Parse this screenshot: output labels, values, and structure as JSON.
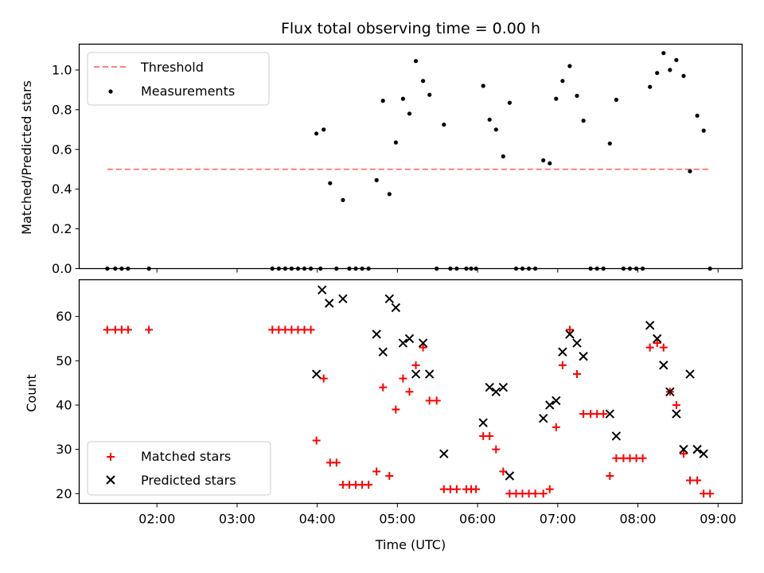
{
  "figure": {
    "title": "Flux total observing time = 0.00 h"
  },
  "colors": {
    "threshold": "#ff7f7f",
    "measurement": "#000000",
    "matched": "#ff0000",
    "predicted": "#000000"
  },
  "chart_data": [
    {
      "type": "scatter",
      "title": "Flux total observing time = 0.00 h",
      "xlabel": "",
      "ylabel": "Matched/Predicted stars",
      "xlim": [
        1.03,
        9.3
      ],
      "ylim": [
        0.0,
        1.13
      ],
      "grid": false,
      "legend_position": "top-left",
      "yticks": [
        "0.0",
        "0.2",
        "0.4",
        "0.6",
        "0.8",
        "1.0"
      ],
      "series": [
        {
          "name": "Threshold",
          "kind": "dashed-line",
          "points": [
            [
              1.38,
              0.5
            ],
            [
              8.9,
              0.5
            ]
          ]
        },
        {
          "name": "Measurements",
          "kind": "dots",
          "points": [
            [
              1.38,
              0
            ],
            [
              1.48,
              0
            ],
            [
              1.56,
              0
            ],
            [
              1.64,
              0
            ],
            [
              1.9,
              0
            ],
            [
              3.44,
              0
            ],
            [
              3.52,
              0
            ],
            [
              3.6,
              0
            ],
            [
              3.68,
              0
            ],
            [
              3.76,
              0
            ],
            [
              3.84,
              0
            ],
            [
              3.92,
              0
            ],
            [
              4.04,
              0
            ],
            [
              3.99,
              0.68
            ],
            [
              4.08,
              0.7
            ],
            [
              4.16,
              0.43
            ],
            [
              4.24,
              0
            ],
            [
              4.32,
              0.345
            ],
            [
              4.4,
              0
            ],
            [
              4.48,
              0
            ],
            [
              4.56,
              0
            ],
            [
              4.64,
              0
            ],
            [
              4.74,
              0.445
            ],
            [
              4.82,
              0.845
            ],
            [
              4.9,
              0.375
            ],
            [
              4.98,
              0.635
            ],
            [
              5.07,
              0.855
            ],
            [
              5.15,
              0.78
            ],
            [
              5.23,
              1.045
            ],
            [
              5.32,
              0.945
            ],
            [
              5.4,
              0.875
            ],
            [
              5.49,
              0
            ],
            [
              5.58,
              0.725
            ],
            [
              5.66,
              0
            ],
            [
              5.74,
              0
            ],
            [
              5.86,
              0
            ],
            [
              5.92,
              0
            ],
            [
              5.98,
              0
            ],
            [
              6.07,
              0.92
            ],
            [
              6.15,
              0.75
            ],
            [
              6.23,
              0.7
            ],
            [
              6.32,
              0.565
            ],
            [
              6.4,
              0.835
            ],
            [
              6.48,
              0
            ],
            [
              6.56,
              0
            ],
            [
              6.64,
              0
            ],
            [
              6.72,
              0
            ],
            [
              6.82,
              0.545
            ],
            [
              6.9,
              0.53
            ],
            [
              6.98,
              0.855
            ],
            [
              7.06,
              0.945
            ],
            [
              7.15,
              1.02
            ],
            [
              7.24,
              0.87
            ],
            [
              7.32,
              0.745
            ],
            [
              7.41,
              0
            ],
            [
              7.49,
              0
            ],
            [
              7.57,
              0
            ],
            [
              7.65,
              0.63
            ],
            [
              7.73,
              0.85
            ],
            [
              7.82,
              0
            ],
            [
              7.9,
              0
            ],
            [
              7.98,
              0
            ],
            [
              8.06,
              0
            ],
            [
              8.15,
              0.915
            ],
            [
              8.24,
              0.985
            ],
            [
              8.32,
              1.085
            ],
            [
              8.4,
              1.0
            ],
            [
              8.48,
              1.05
            ],
            [
              8.57,
              0.97
            ],
            [
              8.65,
              0.49
            ],
            [
              8.74,
              0.77
            ],
            [
              8.82,
              0.695
            ],
            [
              8.9,
              0
            ]
          ]
        }
      ]
    },
    {
      "type": "scatter",
      "title": "",
      "xlabel": "Time (UTC)",
      "ylabel": "Count",
      "xlim": [
        1.03,
        9.3
      ],
      "ylim": [
        17.8,
        68.3
      ],
      "grid": false,
      "legend_position": "bottom-left",
      "xticks": [
        {
          "value": 2,
          "label": "02:00"
        },
        {
          "value": 3,
          "label": "03:00"
        },
        {
          "value": 4,
          "label": "04:00"
        },
        {
          "value": 5,
          "label": "05:00"
        },
        {
          "value": 6,
          "label": "06:00"
        },
        {
          "value": 7,
          "label": "07:00"
        },
        {
          "value": 8,
          "label": "08:00"
        },
        {
          "value": 9,
          "label": "09:00"
        }
      ],
      "yticks": [
        "20",
        "30",
        "40",
        "50",
        "60"
      ],
      "series": [
        {
          "name": "Matched stars",
          "marker": "plus",
          "points": [
            [
              1.38,
              57
            ],
            [
              1.48,
              57
            ],
            [
              1.56,
              57
            ],
            [
              1.64,
              57
            ],
            [
              1.9,
              57
            ],
            [
              3.44,
              57
            ],
            [
              3.52,
              57
            ],
            [
              3.6,
              57
            ],
            [
              3.68,
              57
            ],
            [
              3.76,
              57
            ],
            [
              3.84,
              57
            ],
            [
              3.92,
              57
            ],
            [
              3.99,
              32
            ],
            [
              4.08,
              46
            ],
            [
              4.16,
              27
            ],
            [
              4.24,
              27
            ],
            [
              4.32,
              22
            ],
            [
              4.4,
              22
            ],
            [
              4.48,
              22
            ],
            [
              4.56,
              22
            ],
            [
              4.64,
              22
            ],
            [
              4.74,
              25
            ],
            [
              4.82,
              44
            ],
            [
              4.9,
              24
            ],
            [
              4.98,
              39
            ],
            [
              5.07,
              46
            ],
            [
              5.15,
              43
            ],
            [
              5.23,
              49
            ],
            [
              5.32,
              53
            ],
            [
              5.4,
              41
            ],
            [
              5.49,
              41
            ],
            [
              5.58,
              21
            ],
            [
              5.66,
              21
            ],
            [
              5.74,
              21
            ],
            [
              5.86,
              21
            ],
            [
              5.92,
              21
            ],
            [
              5.98,
              21
            ],
            [
              6.07,
              33
            ],
            [
              6.15,
              33
            ],
            [
              6.23,
              30
            ],
            [
              6.32,
              25
            ],
            [
              6.4,
              20
            ],
            [
              6.48,
              20
            ],
            [
              6.56,
              20
            ],
            [
              6.64,
              20
            ],
            [
              6.72,
              20
            ],
            [
              6.82,
              20
            ],
            [
              6.9,
              21
            ],
            [
              6.98,
              35
            ],
            [
              7.06,
              49
            ],
            [
              7.15,
              57
            ],
            [
              7.24,
              47
            ],
            [
              7.32,
              38
            ],
            [
              7.41,
              38
            ],
            [
              7.49,
              38
            ],
            [
              7.57,
              38
            ],
            [
              7.65,
              24
            ],
            [
              7.73,
              28
            ],
            [
              7.82,
              28
            ],
            [
              7.9,
              28
            ],
            [
              7.98,
              28
            ],
            [
              8.06,
              28
            ],
            [
              8.15,
              53
            ],
            [
              8.24,
              54
            ],
            [
              8.32,
              53
            ],
            [
              8.4,
              43
            ],
            [
              8.48,
              40
            ],
            [
              8.57,
              29
            ],
            [
              8.65,
              23
            ],
            [
              8.74,
              23
            ],
            [
              8.82,
              20
            ],
            [
              8.9,
              20
            ]
          ]
        },
        {
          "name": "Predicted stars",
          "marker": "x",
          "points": [
            [
              3.99,
              47
            ],
            [
              4.06,
              66
            ],
            [
              4.15,
              63
            ],
            [
              4.32,
              64
            ],
            [
              4.74,
              56
            ],
            [
              4.82,
              52
            ],
            [
              4.9,
              64
            ],
            [
              4.98,
              62
            ],
            [
              5.07,
              54
            ],
            [
              5.15,
              55
            ],
            [
              5.23,
              47
            ],
            [
              5.32,
              54
            ],
            [
              5.4,
              47
            ],
            [
              5.58,
              29
            ],
            [
              6.07,
              36
            ],
            [
              6.15,
              44
            ],
            [
              6.23,
              43
            ],
            [
              6.32,
              44
            ],
            [
              6.4,
              24
            ],
            [
              6.82,
              37
            ],
            [
              6.9,
              40
            ],
            [
              6.98,
              41
            ],
            [
              7.06,
              52
            ],
            [
              7.15,
              56
            ],
            [
              7.24,
              54
            ],
            [
              7.32,
              51
            ],
            [
              7.65,
              38
            ],
            [
              7.73,
              33
            ],
            [
              8.15,
              58
            ],
            [
              8.24,
              55
            ],
            [
              8.32,
              49
            ],
            [
              8.4,
              43
            ],
            [
              8.48,
              38
            ],
            [
              8.57,
              30
            ],
            [
              8.65,
              47
            ],
            [
              8.74,
              30
            ],
            [
              8.82,
              29
            ]
          ]
        }
      ]
    }
  ]
}
